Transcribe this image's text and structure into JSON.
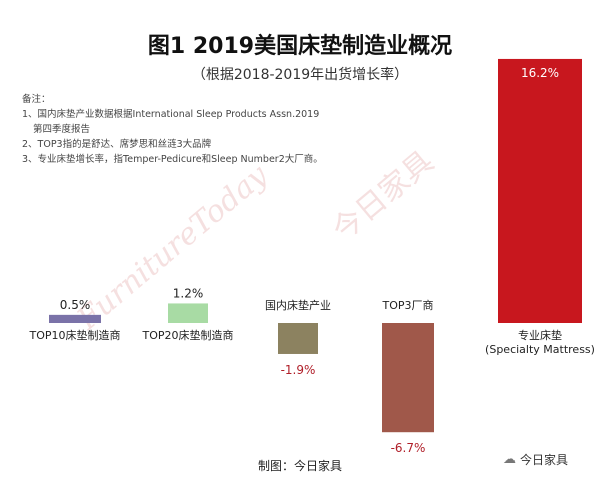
{
  "header": {
    "title": "图1  2019美国床垫制造业概况",
    "subtitle": "（根据2018-2019年出货增长率）"
  },
  "notes": {
    "heading": "备注：",
    "line1": "1、国内床垫产业数据根据International Sleep Products Assn.2019",
    "line1b": "第四季度报告",
    "line2": "2、TOP3指的是舒达、席梦思和丝涟3大品牌",
    "line3": "3、专业床垫增长率，指Temper-Pedicure和Sleep Number2大厂商。"
  },
  "footer": {
    "source": "制图：今日家具",
    "account": "今日家具",
    "account_icon": "wechat-icon"
  },
  "watermark": {
    "text_en": "FurnitureToday",
    "text_cn": "今日家具"
  },
  "chart_data": {
    "type": "bar",
    "categories": [
      "TOP10床垫制造商",
      "TOP20床垫制造商",
      "国内床垫产业",
      "TOP3厂商",
      "专业床垫\n(Specialty Mattress)"
    ],
    "values": [
      0.5,
      1.2,
      -1.9,
      -6.7,
      16.2
    ],
    "labels": [
      "0.5%",
      "1.2%",
      "-1.9%",
      "-6.7%",
      "16.2%"
    ],
    "colors": [
      "#7a72a8",
      "#a8dba4",
      "#8c8260",
      "#a0584a",
      "#c8171e"
    ],
    "negative_label_color": "#b01e28",
    "title": "图1  2019美国床垫制造业概况",
    "ylim": [
      -6.7,
      16.2
    ],
    "grid": false,
    "legend": "none"
  }
}
